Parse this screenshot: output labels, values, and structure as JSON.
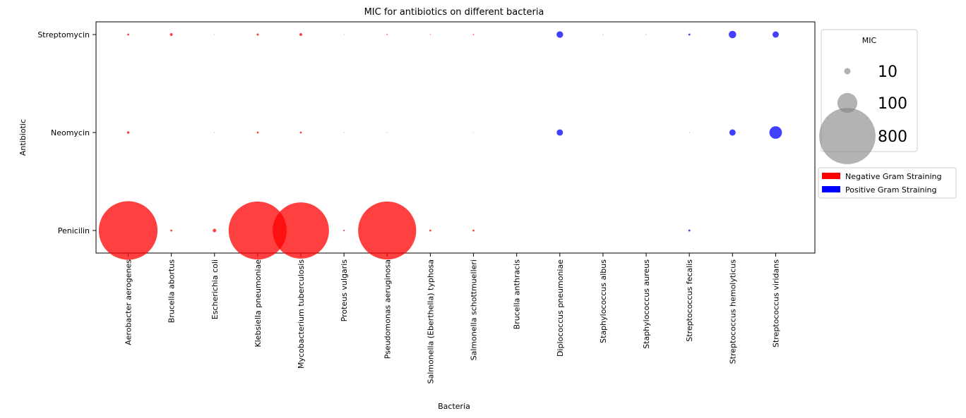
{
  "chart_data": {
    "type": "scatter",
    "title": "MIC for antibiotics on different bacteria",
    "xlabel": "Bacteria",
    "ylabel": "Antibiotic",
    "categories": [
      "Aerobacter aerogenes",
      "Brucella abortus",
      "Escherichia coli",
      "Klebsiella pneumoniae",
      "Mycobacterium tuberculosis",
      "Proteus vulgaris",
      "Pseudomonas aeruginosa",
      "Salmonella (Eberthella) typhosa",
      "Salmonella schottmuelleri",
      "Brucella anthracis",
      "Diplococcus pneumoniae",
      "Staphylococcus albus",
      "Staphylococcus aureus",
      "Streptococcus fecalis",
      "Streptococcus hemolyticus",
      "Streptococcus viridans"
    ],
    "antibiotics": [
      "Streptomycin",
      "Neomycin",
      "Penicilin"
    ],
    "gram": [
      "negative",
      "negative",
      "negative",
      "negative",
      "negative",
      "negative",
      "negative",
      "negative",
      "negative",
      "positive",
      "positive",
      "positive",
      "positive",
      "positive",
      "positive",
      "positive"
    ],
    "mic": {
      "Penicilin": [
        870,
        1,
        3,
        850,
        800,
        0.6,
        850,
        1,
        1,
        0.001,
        0.005,
        0.007,
        0.03,
        1,
        0.001,
        0.005
      ],
      "Streptomycin": [
        1,
        2,
        0.1,
        1.2,
        2,
        0.1,
        0.4,
        0.2,
        0.4,
        0.01,
        11,
        0.1,
        0.1,
        1,
        14,
        10
      ],
      "Neomycin": [
        1.6,
        0.02,
        0.1,
        1,
        1,
        0.1,
        0.1,
        0.008,
        0.09,
        0.007,
        10,
        0.001,
        0.001,
        0.1,
        10,
        40
      ]
    },
    "colors": {
      "negative": "#ff0000",
      "positive": "#0000ff",
      "legend_marker": "#808080"
    },
    "size_legend": {
      "title": "MIC",
      "values": [
        10,
        100,
        800
      ],
      "labels": [
        "10",
        "100",
        "800"
      ]
    },
    "color_legend": [
      {
        "label": "Negative Gram Straining",
        "color": "#ff0000"
      },
      {
        "label": "Positive Gram Straining",
        "color": "#0000ff"
      }
    ],
    "grid": false
  }
}
